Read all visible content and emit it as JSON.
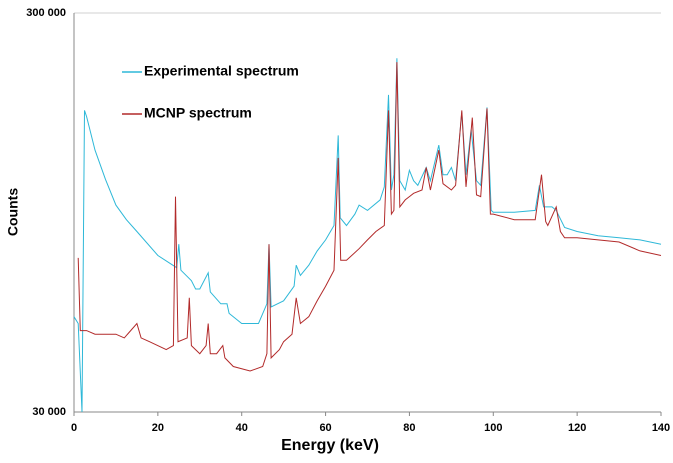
{
  "chart_data": {
    "type": "line",
    "x_label": "Energy (keV)",
    "y_label": "Counts",
    "yscale": "log",
    "xlim": [
      0,
      140
    ],
    "xticks": [
      0,
      20,
      40,
      60,
      80,
      100,
      120,
      140
    ],
    "ylim": [
      30000,
      300000
    ],
    "yticks": [
      {
        "value": 30000,
        "label": "30 000"
      },
      {
        "value": 300000,
        "label": "300 000"
      }
    ],
    "grid": true,
    "legend": "upper left",
    "series": [
      {
        "name": "Experimental spectrum",
        "color": "#2eb8d8",
        "x": [
          0,
          1,
          1.9,
          2.5,
          3,
          5,
          7.5,
          10,
          12.5,
          15,
          20,
          24.5,
          25,
          25.5,
          28,
          29,
          30,
          32,
          32.5,
          35,
          36.5,
          37,
          40,
          44,
          46,
          46.5,
          47,
          50,
          52.5,
          53,
          54,
          56,
          58,
          60,
          62,
          63,
          63.5,
          65,
          67,
          68,
          70,
          73,
          74,
          75,
          75.7,
          76.3,
          77,
          77.7,
          79,
          80,
          81,
          82,
          84,
          85,
          87,
          88,
          89,
          90,
          91,
          92.5,
          93.5,
          94.7,
          96,
          97,
          98.5,
          99.5,
          100,
          105,
          110,
          111,
          112,
          114,
          115,
          117,
          120,
          125,
          130,
          135,
          140
        ],
        "values": [
          52000,
          50000,
          30000,
          171000,
          165000,
          136000,
          115000,
          99000,
          91000,
          85000,
          74000,
          69000,
          79000,
          68000,
          64000,
          61000,
          61000,
          67000,
          60000,
          56000,
          56000,
          53000,
          50000,
          50000,
          56000,
          79000,
          55000,
          57000,
          62000,
          70000,
          66000,
          70000,
          76000,
          81000,
          88000,
          148000,
          92000,
          88000,
          94000,
          99000,
          96000,
          102000,
          110000,
          187000,
          108000,
          118000,
          231000,
          114000,
          108000,
          121000,
          114000,
          111000,
          123000,
          114000,
          140000,
          118000,
          118000,
          123000,
          114000,
          169000,
          118000,
          153000,
          114000,
          111000,
          174000,
          96000,
          95000,
          95000,
          96000,
          111000,
          98000,
          98000,
          96000,
          87000,
          85000,
          83000,
          82000,
          81000,
          79000
        ]
      },
      {
        "name": "MCNP spectrum",
        "color": "#b22a2a",
        "x": [
          1,
          1.5,
          3,
          5,
          8,
          10,
          12,
          15,
          16,
          18,
          22,
          23.7,
          24.2,
          24.8,
          27,
          27.5,
          28,
          30,
          31.5,
          32,
          32.5,
          34,
          35.5,
          36,
          38,
          42,
          45,
          46,
          46.5,
          47,
          49,
          50,
          52,
          53,
          54,
          56,
          58,
          60,
          62,
          63,
          63.6,
          65,
          68,
          70,
          72,
          74,
          75,
          75.7,
          76.3,
          77,
          77.7,
          79,
          80,
          81,
          83,
          84,
          85,
          87,
          88,
          90,
          91,
          92.5,
          93.5,
          95,
          96,
          97,
          98.5,
          99.3,
          100,
          105,
          110,
          111.5,
          112.5,
          113,
          115,
          116,
          117,
          120,
          125,
          130,
          135,
          140
        ],
        "values": [
          73000,
          48000,
          48000,
          47000,
          47000,
          47000,
          46000,
          50000,
          46000,
          45000,
          43000,
          44000,
          104000,
          45000,
          46000,
          58000,
          44000,
          42000,
          44000,
          50000,
          42000,
          42000,
          44000,
          41000,
          39000,
          38000,
          39000,
          42000,
          79000,
          41000,
          43000,
          45000,
          47000,
          58000,
          50000,
          52000,
          57000,
          62000,
          68000,
          130000,
          72000,
          72000,
          77000,
          81000,
          85000,
          88000,
          171000,
          94000,
          96000,
          226000,
          98000,
          102000,
          104000,
          106000,
          108000,
          123000,
          108000,
          136000,
          112000,
          108000,
          111000,
          171000,
          110000,
          164000,
          105000,
          104000,
          173000,
          94000,
          94000,
          91000,
          91000,
          118000,
          90000,
          88000,
          98000,
          85000,
          82000,
          82000,
          81000,
          80000,
          76000,
          74000
        ]
      }
    ]
  }
}
